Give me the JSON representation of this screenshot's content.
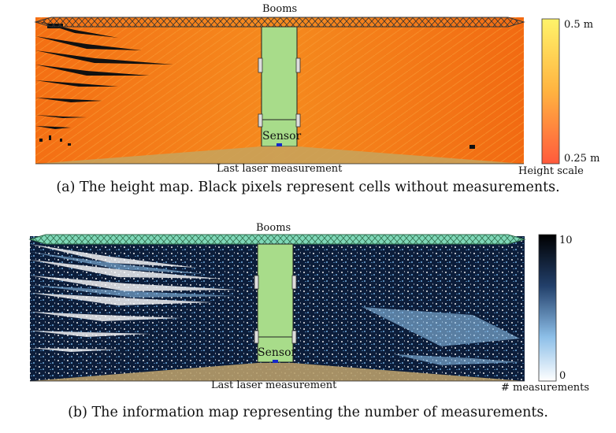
{
  "figure_a": {
    "label_top": "Booms",
    "label_sensor": "Sensor",
    "label_bottom": "Last laser measurement",
    "colorbar_max": "0.5 m",
    "colorbar_min": "0.25 m",
    "colorbar_title": "Height scale",
    "caption": "(a) The height map. Black pixels represent cells without measurements.",
    "colors": {
      "map_base": "#f47a18",
      "map_light": "#f8a52c",
      "missing": "#111111",
      "cab": "#a8dc8a",
      "ground": "#c9a25a",
      "scale_top": "#fff36a",
      "scale_bottom": "#ff5a3c"
    }
  },
  "figure_b": {
    "label_top": "Booms",
    "label_sensor": "Sensor",
    "label_bottom": "Last laser measurement",
    "colorbar_max": "10",
    "colorbar_min": "0",
    "colorbar_title": "# measurements",
    "caption": "(b) The information map representing the number of measurements.",
    "colors": {
      "map_base": "#0c1d3a",
      "map_light": "#6fa8d8",
      "empty": "#ffffff",
      "cab": "#a8dc8a",
      "ground": "#b79d6a",
      "scale_top": "#000000",
      "scale_bottom": "#ffffff"
    }
  }
}
